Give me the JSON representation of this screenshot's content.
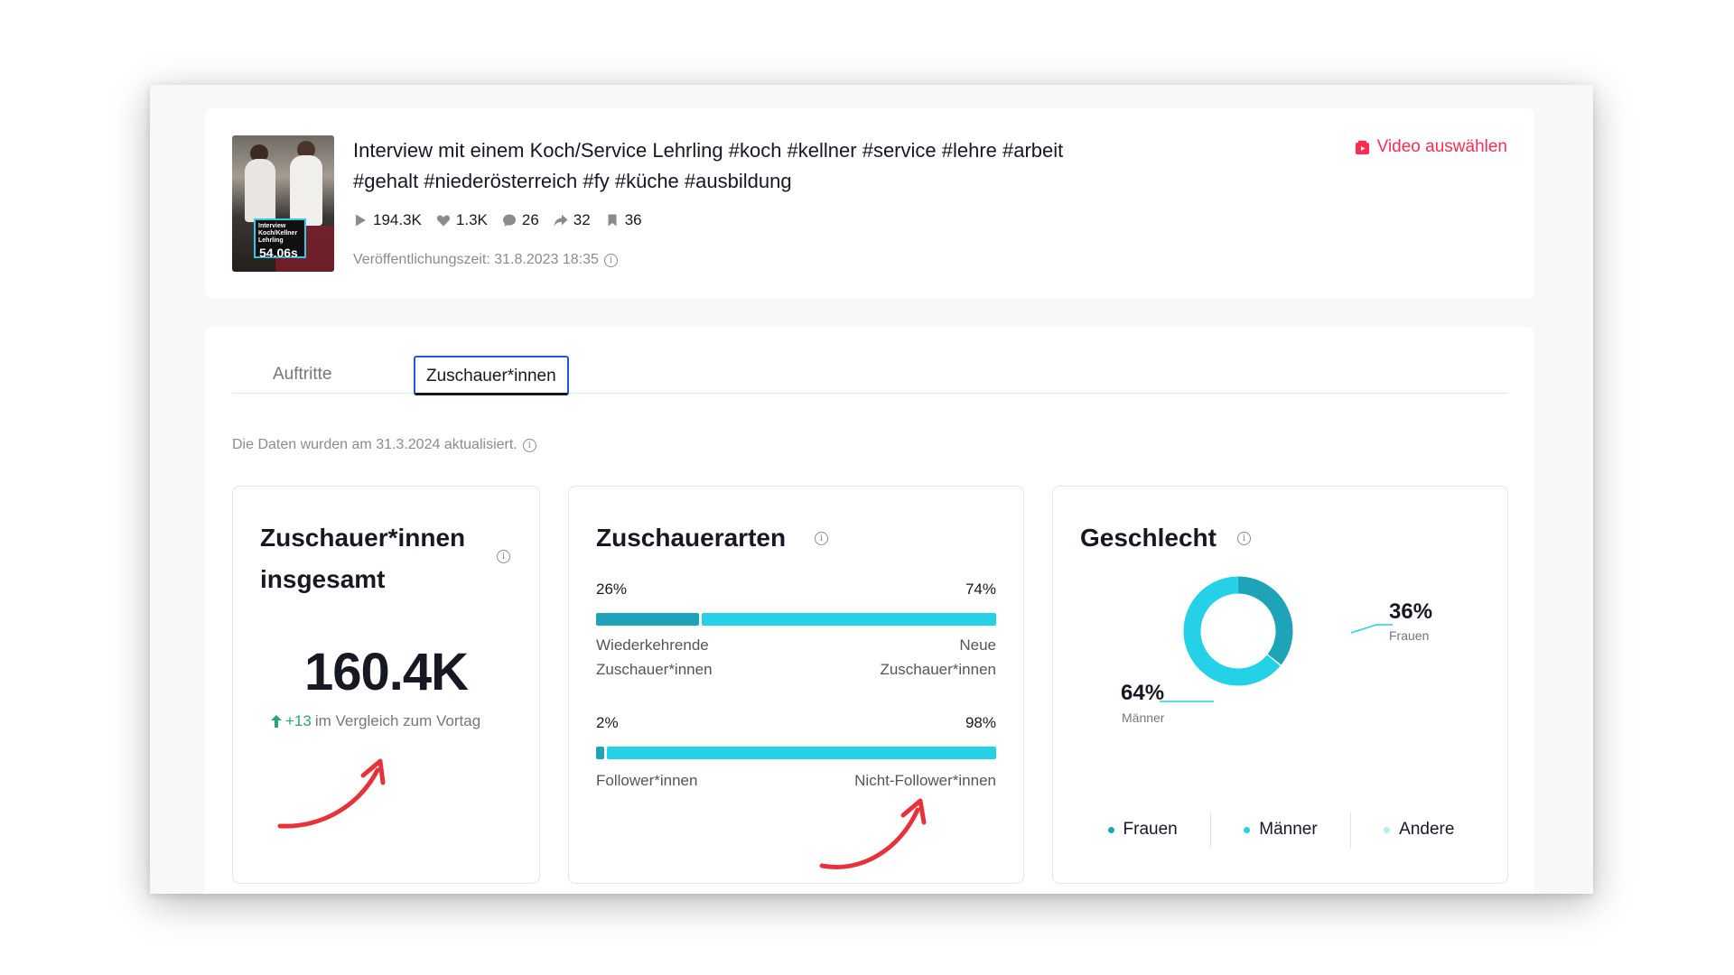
{
  "video": {
    "title": "Interview mit einem Koch/Service Lehrling #koch #kellner #service #lehre #arbeit #gehalt #niederösterreich #fy #küche #ausbildung",
    "thumbnail_text": "Interview Koch/Kellner Lehrling",
    "thumbnail_duration": "54.06s",
    "stats": {
      "views": "194.3K",
      "likes": "1.3K",
      "comments": "26",
      "shares": "32",
      "saves": "36"
    },
    "published": "Veröffentlichungszeit: 31.8.2023 18:35",
    "select_label": "Video auswählen"
  },
  "tabs": [
    {
      "label": "Auftritte",
      "active": false
    },
    {
      "label": "Zuschauer*innen",
      "active": true
    }
  ],
  "updated_note": "Die Daten wurden am 31.3.2024 aktualisiert.",
  "viewers_total": {
    "title": "Zuschauer*innen insgesamt",
    "value": "160.4K",
    "delta": "+13",
    "delta_text": "im Vergleich zum Vortag"
  },
  "viewer_types": {
    "title": "Zuschauerarten",
    "returning": {
      "pct": "26%",
      "value": 26,
      "label": "Wiederkehrende Zuschauer*innen"
    },
    "new": {
      "pct": "74%",
      "value": 74,
      "label": "Neue Zuschauer*innen"
    },
    "followers": {
      "pct": "2%",
      "value": 2,
      "label": "Follower*innen"
    },
    "non_followers": {
      "pct": "98%",
      "value": 98,
      "label": "Nicht-Follower*innen"
    }
  },
  "gender": {
    "title": "Geschlecht",
    "female": {
      "pct": "36%",
      "value": 36,
      "label": "Frauen"
    },
    "male": {
      "pct": "64%",
      "value": 64,
      "label": "Männer"
    },
    "legend": [
      "Frauen",
      "Männer",
      "Andere"
    ]
  },
  "colors": {
    "accent_red": "#fe2c55",
    "dark_teal": "#1fa3b8",
    "cyan": "#25d1e6",
    "light_cyan": "#b7eef6",
    "positive": "#2ba56b",
    "annotation_arrow": "#e8323a"
  }
}
